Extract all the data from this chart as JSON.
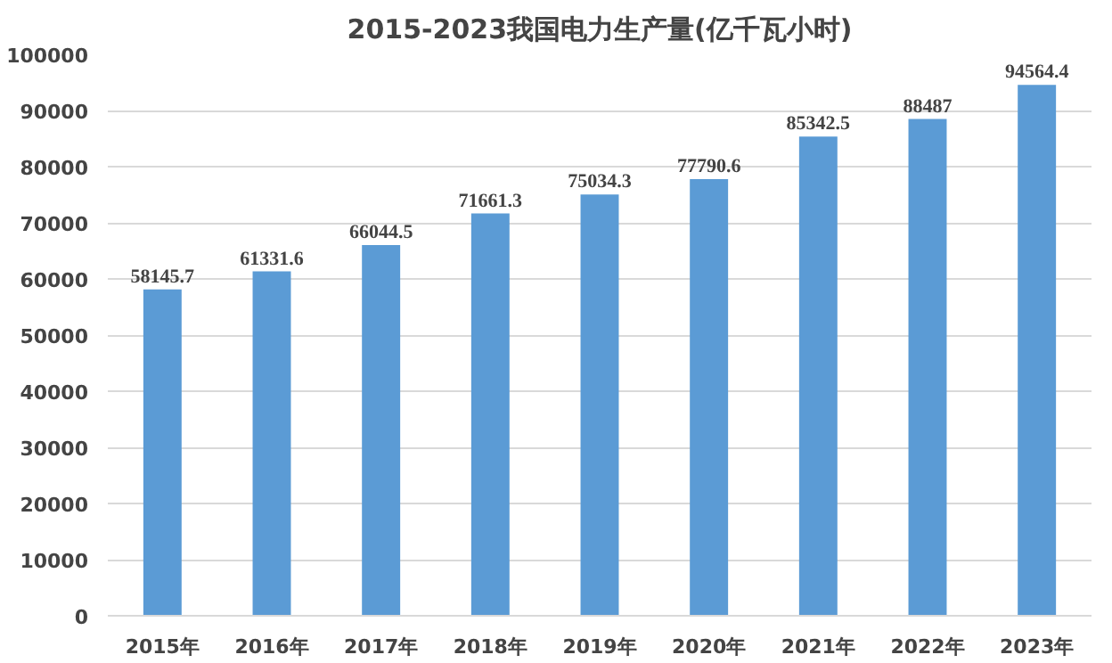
{
  "chart_data": {
    "type": "bar",
    "title": "2015-2023我国电力生产量(亿千瓦小时)",
    "categories": [
      "2015年",
      "2016年",
      "2017年",
      "2018年",
      "2019年",
      "2020年",
      "2021年",
      "2022年",
      "2023年"
    ],
    "values": [
      58145.7,
      61331.6,
      66044.5,
      71661.3,
      75034.3,
      77790.6,
      85342.5,
      88487,
      94564.4
    ],
    "color": "#5b9bd5",
    "ylim": [
      0,
      100000
    ],
    "yticks": [
      0,
      10000,
      20000,
      30000,
      40000,
      50000,
      60000,
      70000,
      80000,
      90000,
      100000
    ],
    "grid": "y",
    "data_labels": true
  }
}
